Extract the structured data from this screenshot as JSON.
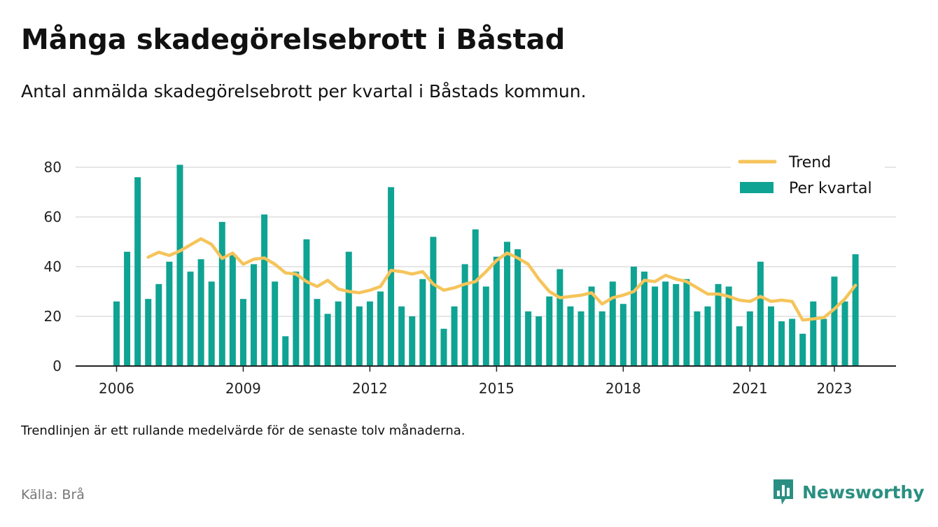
{
  "header": {
    "title": "Många skadegörelsebrott i Båstad",
    "subtitle": "Antal anmälda skadegörelsebrott per kvartal i Båstads kommun."
  },
  "footer": {
    "note": "Trendlinjen är ett rullande medelvärde för de senaste tolv månaderna.",
    "source": "Källa: Brå",
    "brand": "Newsworthy"
  },
  "colors": {
    "bar": "#0fa393",
    "trend": "#f5c45a",
    "grid": "#dddddd",
    "axis": "#222222",
    "brand": "#2a8f82"
  },
  "chart_data": {
    "type": "bar",
    "x_unit": "quarter",
    "start": "2006 Q1",
    "ylim": [
      0,
      90
    ],
    "yticks": [
      0,
      20,
      40,
      60,
      80
    ],
    "xticks": [
      "2006",
      "2009",
      "2012",
      "2015",
      "2018",
      "2021",
      "2023"
    ],
    "grid": true,
    "legend_position": "top-right",
    "series": [
      {
        "name": "Per kvartal",
        "kind": "bar",
        "values": [
          26,
          46,
          76,
          27,
          33,
          42,
          81,
          38,
          43,
          34,
          58,
          45,
          27,
          41,
          61,
          34,
          12,
          38,
          51,
          27,
          21,
          26,
          46,
          24,
          26,
          30,
          72,
          24,
          20,
          35,
          52,
          15,
          24,
          41,
          55,
          32,
          44,
          50,
          47,
          22,
          20,
          28,
          39,
          24,
          22,
          32,
          22,
          34,
          25,
          40,
          38,
          32,
          34,
          33,
          35,
          22,
          24,
          33,
          32,
          16,
          22,
          42,
          24,
          18,
          19,
          13,
          26,
          19,
          36,
          26,
          45
        ]
      },
      {
        "name": "Trend",
        "kind": "line",
        "values": [
          null,
          null,
          null,
          43.8,
          45.8,
          44.5,
          46.3,
          48.8,
          51.2,
          49.0,
          43.3,
          45.5,
          41.0,
          43.0,
          43.5,
          41.0,
          37.5,
          37.0,
          34.0,
          32.0,
          34.5,
          31.0,
          30.0,
          29.5,
          30.5,
          32.0,
          38.5,
          38.0,
          37.0,
          38.0,
          33.0,
          30.5,
          31.5,
          33.0,
          34.0,
          38.0,
          42.5,
          45.5,
          43.5,
          41.0,
          35.0,
          30.0,
          27.5,
          28.0,
          28.5,
          29.5,
          25.0,
          27.5,
          28.5,
          30.0,
          34.5,
          34.0,
          36.5,
          35.0,
          34.0,
          31.5,
          29.0,
          29.0,
          28.0,
          26.5,
          26.0,
          28.0,
          26.0,
          26.5,
          26.0,
          18.5,
          19.0,
          19.5,
          23.0,
          27.0,
          32.5
        ]
      }
    ]
  }
}
